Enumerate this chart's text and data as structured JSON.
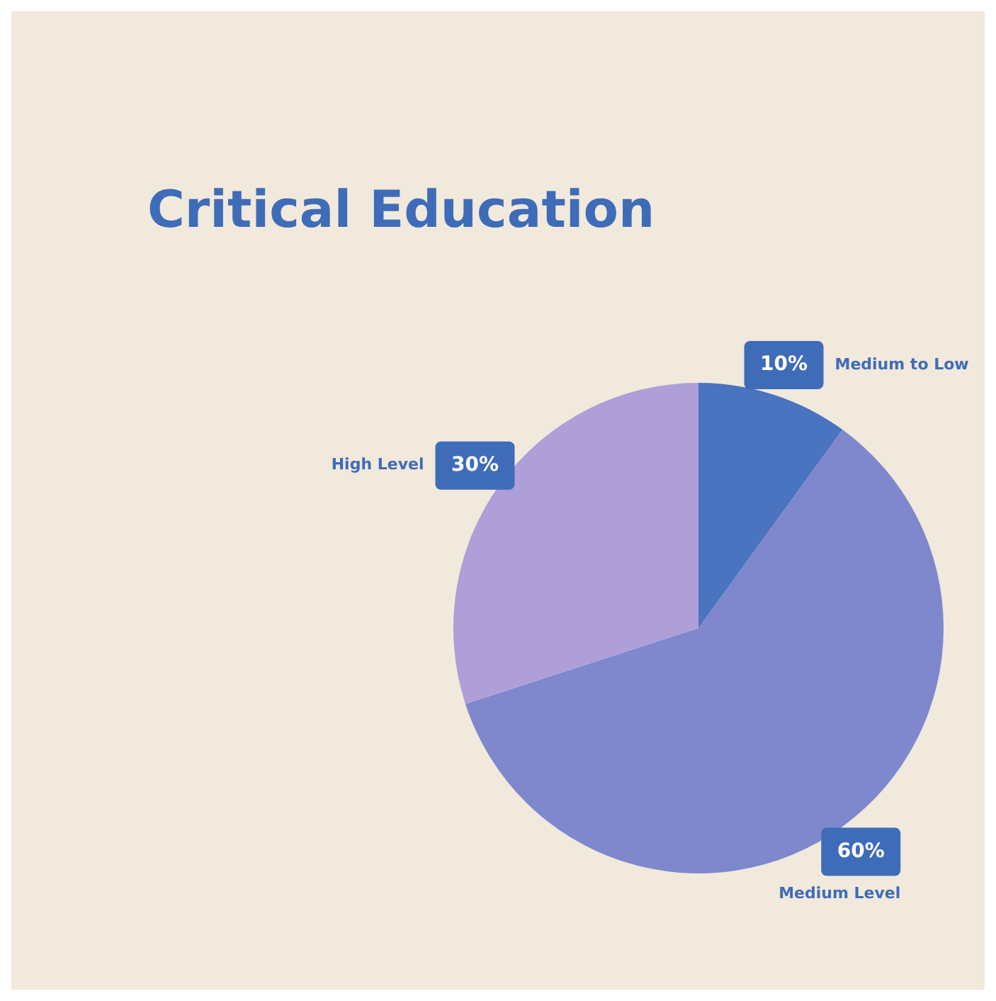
{
  "chart_data": {
    "type": "pie",
    "title": "Critical Education",
    "categories": [
      "Medium to Low",
      "Medium Level",
      "High Level"
    ],
    "values": [
      10,
      60,
      30
    ],
    "value_labels": [
      "10%",
      "60%",
      "30%"
    ],
    "colors": [
      "#4a73c0",
      "#7f88cc",
      "#ae9fd9"
    ],
    "legend": false
  }
}
